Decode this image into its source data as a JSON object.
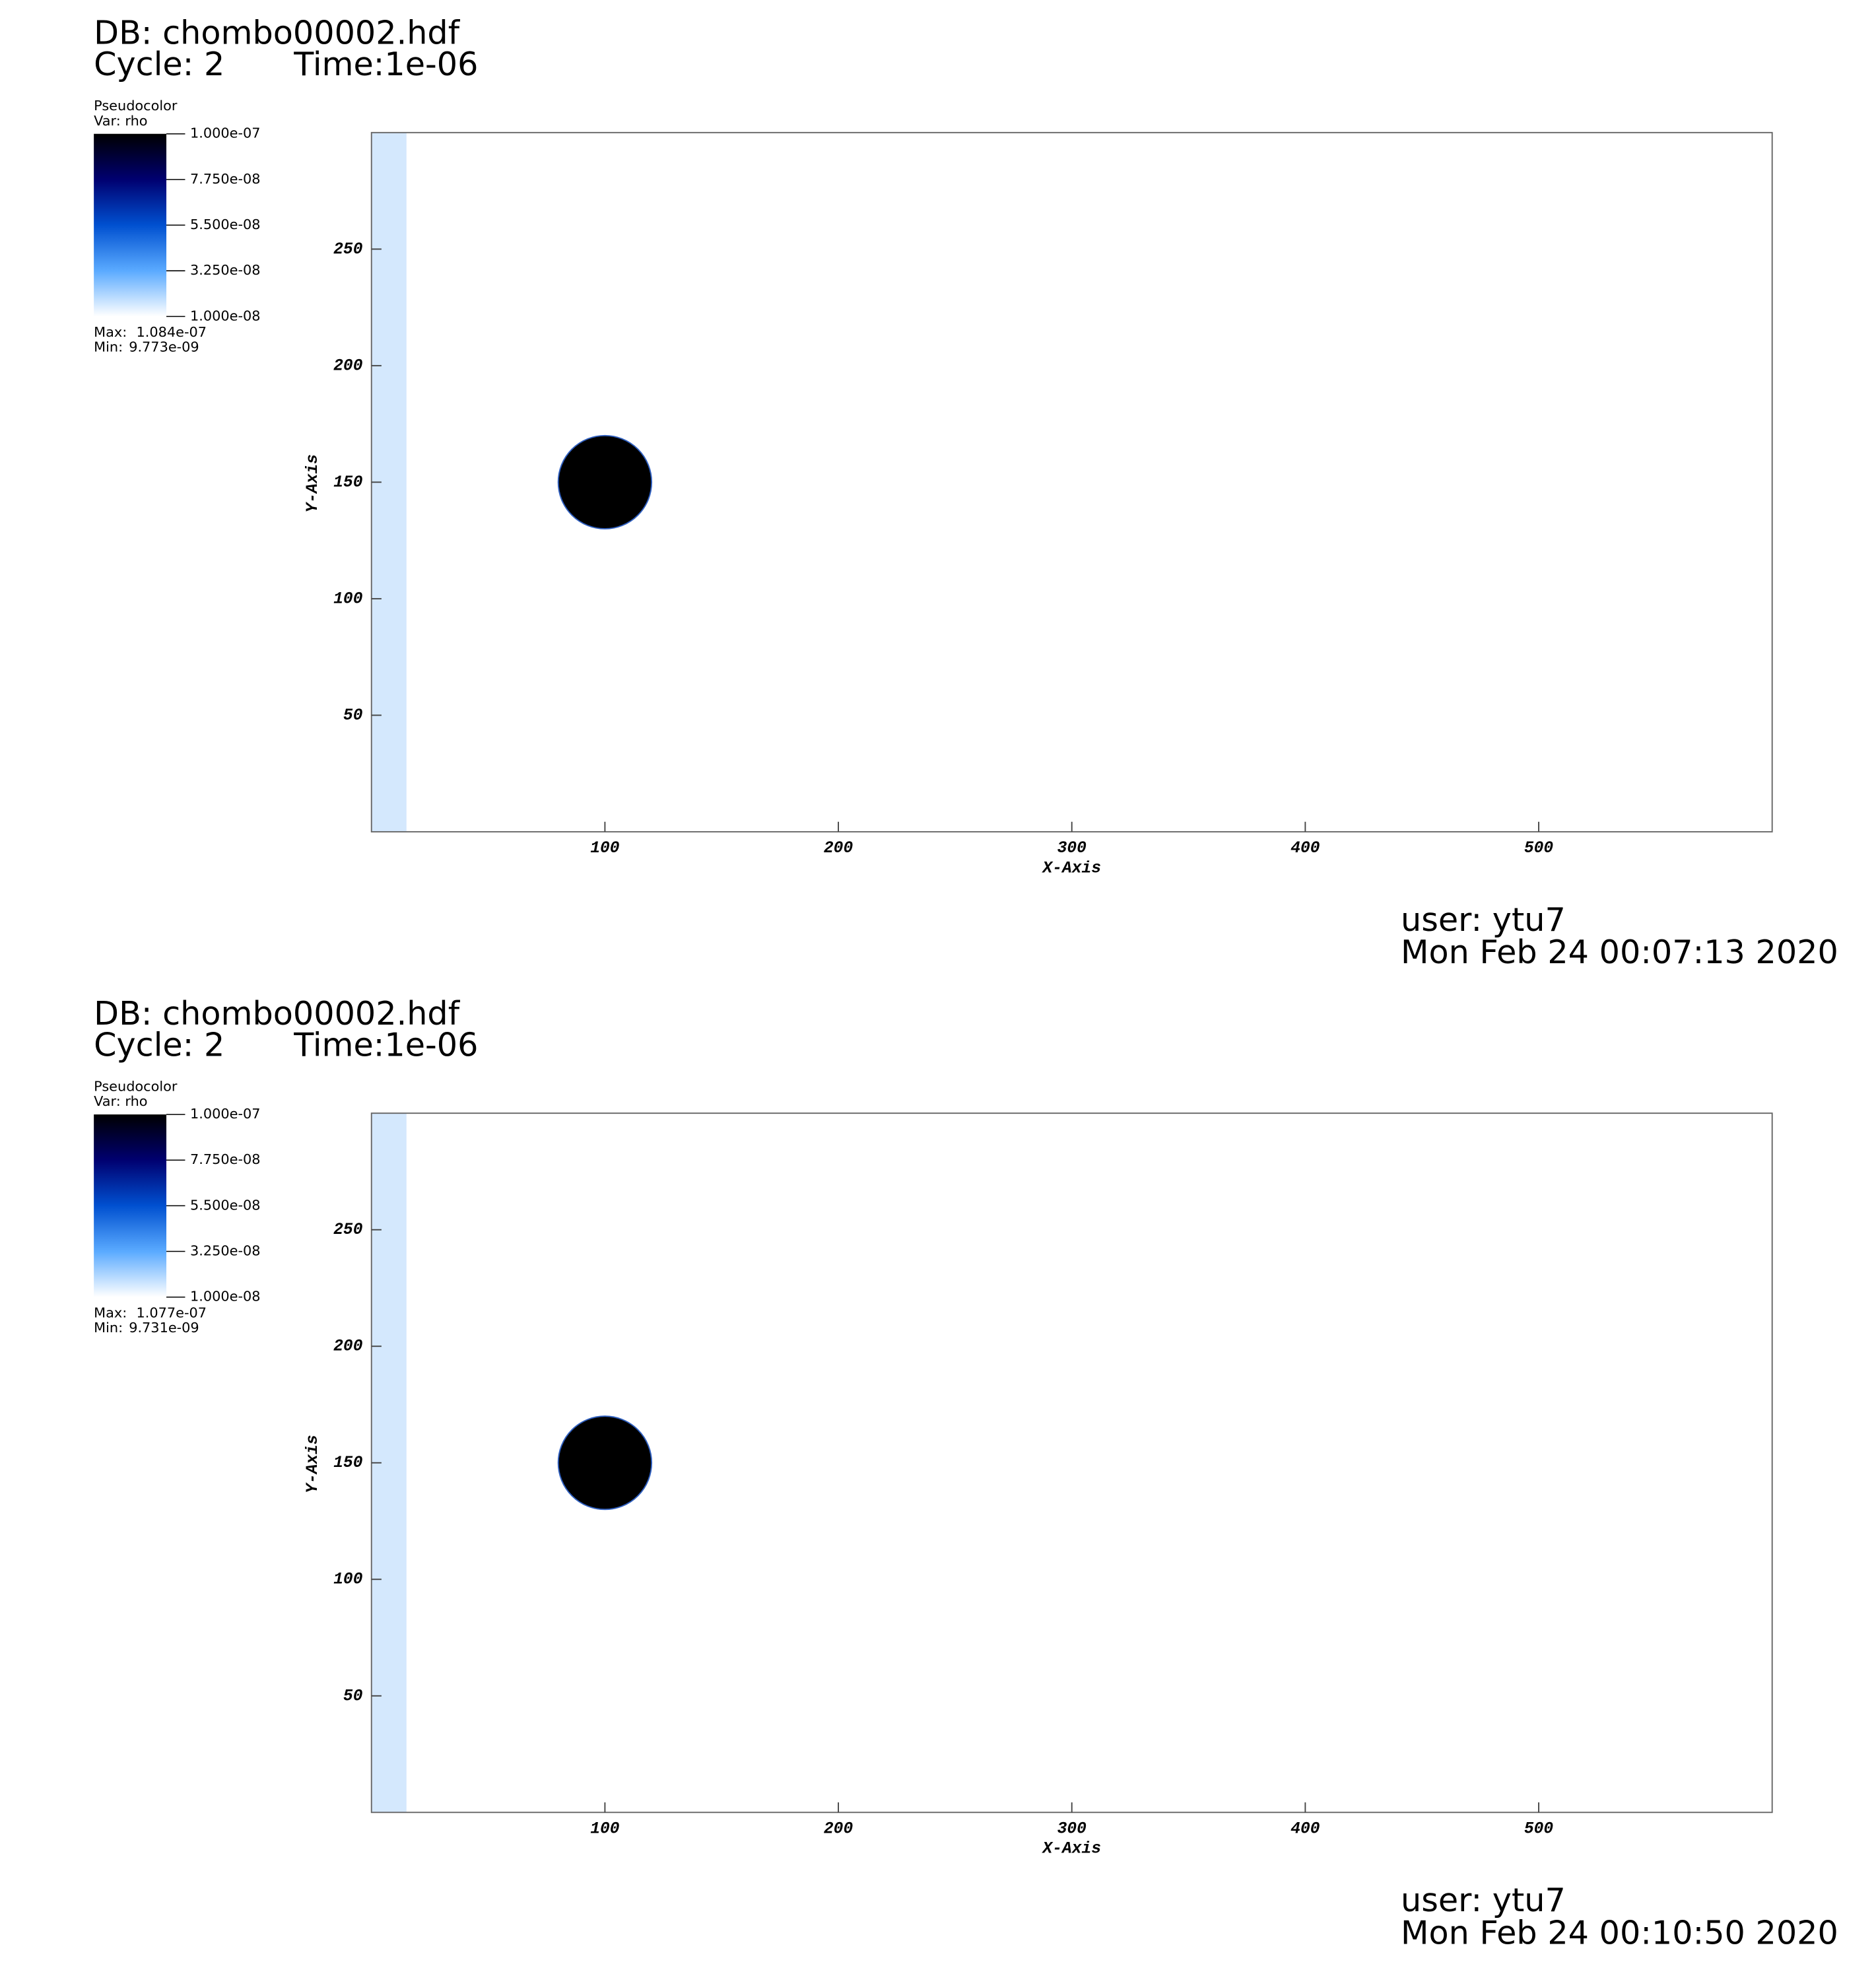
{
  "chart_data": [
    {
      "type": "pseudocolor",
      "db": "DB: chombo00002.hdf",
      "cycle": "Cycle: 2",
      "time": "Time:1e-06",
      "legend_title": "Pseudocolor",
      "legend_var": "Var: rho",
      "colorbar_lim": [
        1e-08,
        1e-07
      ],
      "colorbar_ticks": [
        {
          "value": 1e-07,
          "label": "1.000e-07"
        },
        {
          "value": 7.75e-08,
          "label": "7.750e-08"
        },
        {
          "value": 5.5e-08,
          "label": "5.500e-08"
        },
        {
          "value": 3.25e-08,
          "label": "3.250e-08"
        },
        {
          "value": 1e-08,
          "label": "1.000e-08"
        }
      ],
      "colormap": [
        "#ffffff",
        "#5aaaff",
        "#0050d0",
        "#000070",
        "#000000"
      ],
      "max_text": "Max:",
      "max": {
        "value": 1.084e-07,
        "label": "1.084e-07"
      },
      "min_text": "Min:",
      "min": {
        "value": 9.773e-09,
        "label": "9.773e-09"
      },
      "xlabel": "X-Axis",
      "ylabel": "Y-Axis",
      "xlim": [
        0,
        600
      ],
      "ylim": [
        0,
        300
      ],
      "xticks": [
        100,
        200,
        300,
        400,
        500
      ],
      "yticks": [
        50,
        100,
        150,
        200,
        250
      ],
      "features": [
        {
          "shape": "rect",
          "x": [
            0,
            15
          ],
          "y": [
            0,
            300
          ],
          "color": "#d4e8fd"
        },
        {
          "shape": "circle",
          "cx": 100,
          "cy": 150,
          "r": 20,
          "color": "#000000"
        }
      ],
      "user": "user: ytu7",
      "date": "Mon Feb 24 00:07:13 2020"
    },
    {
      "type": "pseudocolor",
      "db": "DB: chombo00002.hdf",
      "cycle": "Cycle: 2",
      "time": "Time:1e-06",
      "legend_title": "Pseudocolor",
      "legend_var": "Var: rho",
      "colorbar_lim": [
        1e-08,
        1e-07
      ],
      "colorbar_ticks": [
        {
          "value": 1e-07,
          "label": "1.000e-07"
        },
        {
          "value": 7.75e-08,
          "label": "7.750e-08"
        },
        {
          "value": 5.5e-08,
          "label": "5.500e-08"
        },
        {
          "value": 3.25e-08,
          "label": "3.250e-08"
        },
        {
          "value": 1e-08,
          "label": "1.000e-08"
        }
      ],
      "colormap": [
        "#ffffff",
        "#5aaaff",
        "#0050d0",
        "#000070",
        "#000000"
      ],
      "max_text": "Max:",
      "max": {
        "value": 1.077e-07,
        "label": "1.077e-07"
      },
      "min_text": "Min:",
      "min": {
        "value": 9.731e-09,
        "label": "9.731e-09"
      },
      "xlabel": "X-Axis",
      "ylabel": "Y-Axis",
      "xlim": [
        0,
        600
      ],
      "ylim": [
        0,
        300
      ],
      "xticks": [
        100,
        200,
        300,
        400,
        500
      ],
      "yticks": [
        50,
        100,
        150,
        200,
        250
      ],
      "features": [
        {
          "shape": "rect",
          "x": [
            0,
            15
          ],
          "y": [
            0,
            300
          ],
          "color": "#d4e8fd"
        },
        {
          "shape": "circle",
          "cx": 100,
          "cy": 150,
          "r": 20,
          "color": "#000000"
        }
      ],
      "user": "user: ytu7",
      "date": "Mon Feb 24 00:10:50 2020"
    }
  ]
}
